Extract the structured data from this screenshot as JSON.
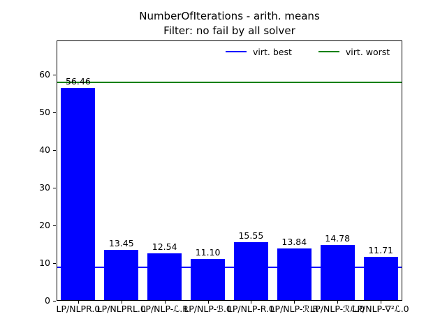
{
  "title": {
    "line1": "NumberOfIterations - arith. means",
    "line2": "Filter: no fail by all solver"
  },
  "legend": {
    "items": [
      {
        "label": "virt. best",
        "color": "#0000ff"
      },
      {
        "label": "virt. worst",
        "color": "#008000"
      }
    ],
    "position": "upper-right-inside-horizontal-frameless"
  },
  "colors": {
    "bar": "#0000ff",
    "virt_best_line": "#0000ff",
    "virt_worst_line": "#008000",
    "axes": "#000000",
    "background": "#ffffff"
  },
  "chart_data": {
    "type": "bar",
    "title": "NumberOfIterations - arith. means\nFilter: no fail by all solver",
    "categories": [
      "LP/NLPR.0",
      "LP/NLPRL.0",
      "LP/NLP-ℒ.R",
      "LP/NLP-ℬ.0",
      "LP/NLP-R.0",
      "LP/NLP-ℛ.R",
      "LP/NLP-ℛℒ.0",
      "LP/NLP-∇²ℒ.0"
    ],
    "values": [
      56.46,
      13.45,
      12.54,
      11.1,
      15.55,
      13.84,
      14.78,
      11.71
    ],
    "value_labels": [
      "56.46",
      "13.45",
      "12.54",
      "11.10",
      "15.55",
      "13.84",
      "14.78",
      "11.71"
    ],
    "xlabel": "",
    "ylabel": "",
    "yticks": [
      0,
      10,
      20,
      30,
      40,
      50,
      60
    ],
    "ylim": [
      0,
      69
    ],
    "grid": false,
    "reference_lines": [
      {
        "name": "virt. best",
        "value": 8.8,
        "color": "#0000ff"
      },
      {
        "name": "virt. worst",
        "value": 58.0,
        "color": "#008000"
      }
    ]
  }
}
